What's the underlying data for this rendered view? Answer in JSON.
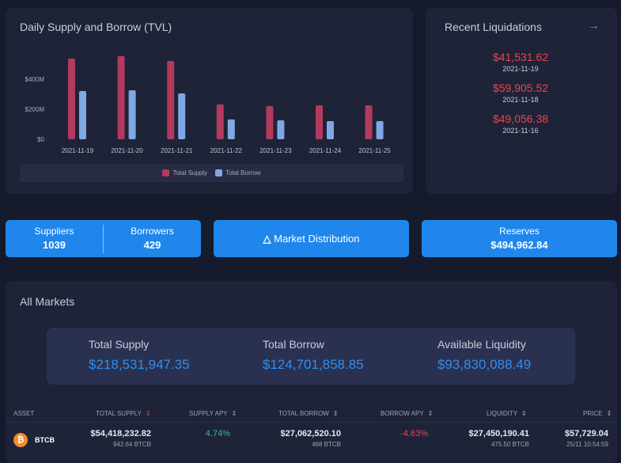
{
  "chart_panel": {
    "title": "Daily Supply and Borrow (TVL)"
  },
  "chart_data": {
    "type": "bar",
    "title": "Daily Supply and Borrow (TVL)",
    "categories": [
      "2021-11-19",
      "2021-11-20",
      "2021-11-21",
      "2021-11-22",
      "2021-11-23",
      "2021-11-24",
      "2021-11-25"
    ],
    "series": [
      {
        "name": "Total Supply",
        "color": "#b23a5f",
        "values": [
          537,
          553,
          521,
          232,
          221,
          226,
          226
        ]
      },
      {
        "name": "Total Borrow",
        "color": "#7fa8e4",
        "values": [
          321,
          326,
          305,
          132,
          126,
          121,
          121
        ]
      }
    ],
    "unit": "$M",
    "yticks": [
      "$0",
      "$200M",
      "$400M"
    ],
    "ytick_values": [
      0,
      200,
      400
    ],
    "ylim": [
      0,
      600
    ],
    "grid": false,
    "legend": "bottom"
  },
  "liquidations": {
    "title": "Recent Liquidations",
    "items": [
      {
        "amount": "$41,531.62",
        "date": "2021-11-19"
      },
      {
        "amount": "$59,905.52",
        "date": "2021-11-18"
      },
      {
        "amount": "$49,056.38",
        "date": "2021-11-16"
      }
    ]
  },
  "counts": {
    "suppliers_label": "Suppliers",
    "suppliers": "1039",
    "borrowers_label": "Borrowers",
    "borrowers": "429"
  },
  "market_distribution": "Market Distribution",
  "reserves": {
    "label": "Reserves",
    "value": "$494,962.84"
  },
  "markets": {
    "title": "All Markets",
    "total_supply_label": "Total Supply",
    "total_supply": "$218,531,947.35",
    "total_borrow_label": "Total Borrow",
    "total_borrow": "$124,701,858.85",
    "liquidity_label": "Available Liquidity",
    "liquidity": "$93,830,088.49",
    "columns": [
      "ASSET",
      "TOTAL SUPPLY",
      "SUPPLY APY",
      "TOTAL BORROW",
      "BORROW APY",
      "LIQUIDITY",
      "PRICE"
    ],
    "rows": [
      {
        "asset": "BTCB",
        "total_supply": "$54,418,232.82",
        "supply_amount": "942.64 BTCB",
        "supply_apy": "4.74%",
        "total_borrow": "$27,062,520.10",
        "borrow_amount": "468 BTCB",
        "borrow_apy": "-4.63%",
        "liquidity": "$27,450,190.41",
        "liquidity_amount": "475.50 BTCB",
        "price": "$57,729.04",
        "price_time": "25/11 10:54:59"
      }
    ]
  }
}
